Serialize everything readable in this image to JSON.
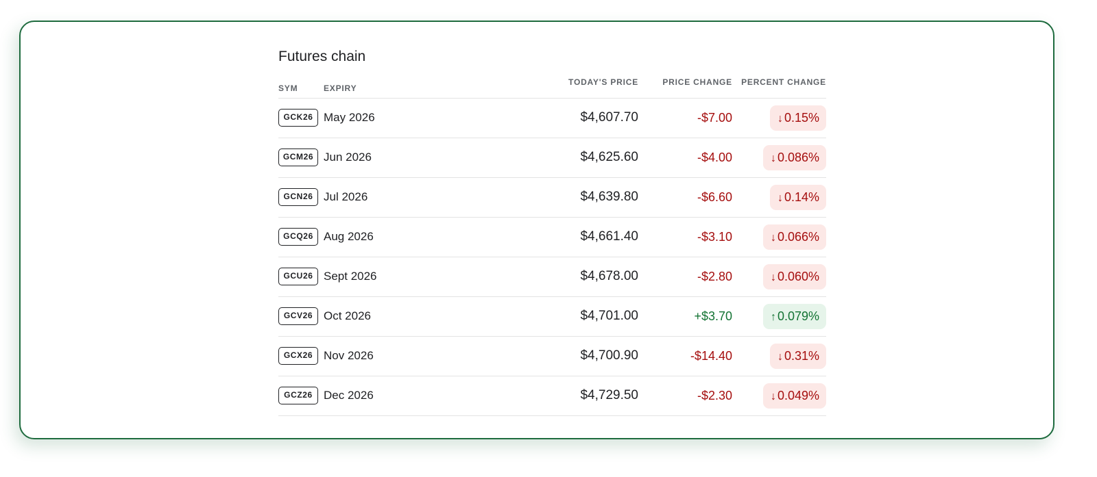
{
  "page": {
    "title": "Futures chain"
  },
  "table": {
    "headers": {
      "sym": "SYM",
      "expiry": "EXPIRY",
      "price": "TODAY'S PRICE",
      "change": "PRICE CHANGE",
      "percent": "PERCENT CHANGE"
    },
    "rows": [
      {
        "sym": "GCK26",
        "expiry": "May 2026",
        "price": "$4,607.70",
        "change": "-$7.00",
        "percent": "0.15%",
        "direction": "down",
        "arrow": "↓"
      },
      {
        "sym": "GCM26",
        "expiry": "Jun 2026",
        "price": "$4,625.60",
        "change": "-$4.00",
        "percent": "0.086%",
        "direction": "down",
        "arrow": "↓"
      },
      {
        "sym": "GCN26",
        "expiry": "Jul 2026",
        "price": "$4,639.80",
        "change": "-$6.60",
        "percent": "0.14%",
        "direction": "down",
        "arrow": "↓"
      },
      {
        "sym": "GCQ26",
        "expiry": "Aug 2026",
        "price": "$4,661.40",
        "change": "-$3.10",
        "percent": "0.066%",
        "direction": "down",
        "arrow": "↓"
      },
      {
        "sym": "GCU26",
        "expiry": "Sept 2026",
        "price": "$4,678.00",
        "change": "-$2.80",
        "percent": "0.060%",
        "direction": "down",
        "arrow": "↓"
      },
      {
        "sym": "GCV26",
        "expiry": "Oct 2026",
        "price": "$4,701.00",
        "change": "+$3.70",
        "percent": "0.079%",
        "direction": "up",
        "arrow": "↑"
      },
      {
        "sym": "GCX26",
        "expiry": "Nov 2026",
        "price": "$4,700.90",
        "change": "-$14.40",
        "percent": "0.31%",
        "direction": "down",
        "arrow": "↓"
      },
      {
        "sym": "GCZ26",
        "expiry": "Dec 2026",
        "price": "$4,729.50",
        "change": "-$2.30",
        "percent": "0.049%",
        "direction": "down",
        "arrow": "↓"
      }
    ]
  },
  "colors": {
    "negative": "#a50e0e",
    "negative_bg": "#fce8e6",
    "positive": "#137333",
    "positive_bg": "#e6f4ea",
    "card_border": "#1e6b3e"
  },
  "icons": {
    "down": "arrow-down-icon",
    "up": "arrow-up-icon"
  }
}
